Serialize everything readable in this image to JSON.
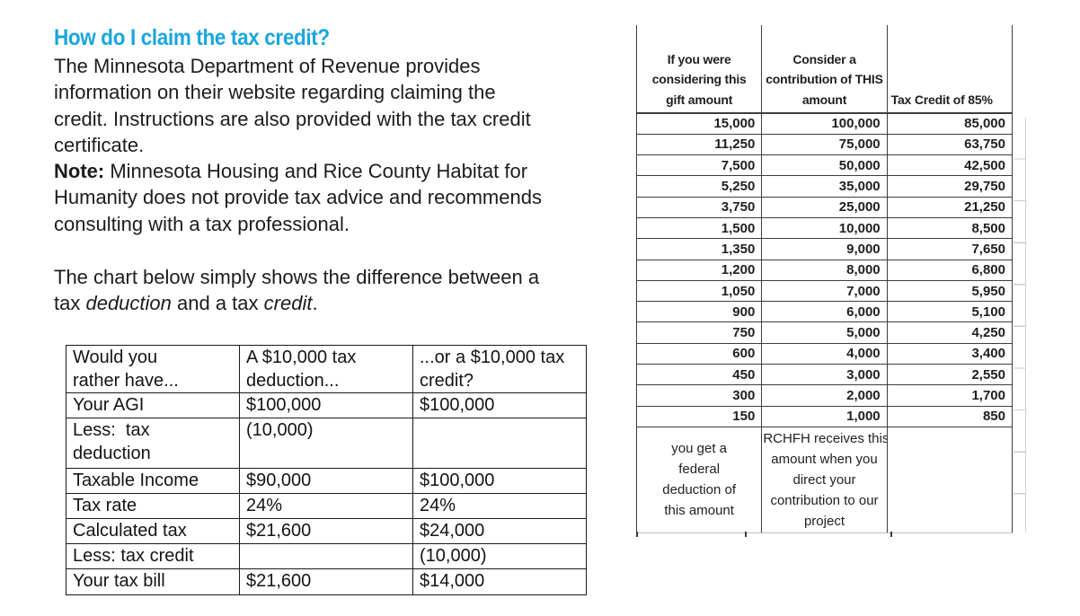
{
  "colors": {
    "accent": "#19a6db",
    "text": "#1c1c1c",
    "table_border_dark": "#3d3d3d",
    "gridline_light": "#cccccc"
  },
  "article": {
    "heading": "How do I claim the tax credit?",
    "para1": "The Minnesota Department of Revenue provides\ninformation on their website regarding claiming the\ncredit. Instructions are also provided with the tax credit\ncertificate.",
    "note_label": "Note:",
    "note_text": " Minnesota Housing and Rice County Habitat for\nHumanity does not provide tax advice and recommends\nconsulting with a tax professional.",
    "para3_part1": "The chart below simply shows the difference between a\ntax ",
    "para3_italic1": "deduction",
    "para3_mid": " and a tax ",
    "para3_italic2": "credit",
    "para3_end": "."
  },
  "comparison_table": {
    "header": [
      "Would you\nrather have...",
      "A $10,000 tax\ndeduction...",
      "...or a $10,000 tax\ncredit?"
    ],
    "rows": [
      [
        "Your AGI",
        "$100,000",
        "$100,000"
      ],
      [
        "Less:  tax\ndeduction",
        "(10,000)",
        ""
      ],
      [
        "Taxable Income",
        "$90,000",
        "$100,000"
      ],
      [
        "Tax rate",
        "24%",
        "24%"
      ],
      [
        "Calculated tax",
        "$21,600",
        "$24,000"
      ],
      [
        "Less: tax credit",
        "",
        "(10,000)"
      ],
      [
        "Your tax bill",
        "$21,600",
        "$14,000"
      ]
    ]
  },
  "gift_table": {
    "header": [
      "If you were\nconsidering this\ngift amount",
      "Consider a\ncontribution of THIS\namount",
      "Tax Credit of 85%"
    ],
    "rows": [
      [
        "15,000",
        "100,000",
        "85,000"
      ],
      [
        "11,250",
        "75,000",
        "63,750"
      ],
      [
        "7,500",
        "50,000",
        "42,500"
      ],
      [
        "5,250",
        "35,000",
        "29,750"
      ],
      [
        "3,750",
        "25,000",
        "21,250"
      ],
      [
        "1,500",
        "10,000",
        "8,500"
      ],
      [
        "1,350",
        "9,000",
        "7,650"
      ],
      [
        "1,200",
        "8,000",
        "6,800"
      ],
      [
        "1,050",
        "7,000",
        "5,950"
      ],
      [
        "900",
        "6,000",
        "5,100"
      ],
      [
        "750",
        "5,000",
        "4,250"
      ],
      [
        "600",
        "4,000",
        "3,400"
      ],
      [
        "450",
        "3,000",
        "2,550"
      ],
      [
        "300",
        "2,000",
        "1,700"
      ],
      [
        "150",
        "1,000",
        "850"
      ]
    ],
    "footer": [
      "you get a\nfederal\ndeduction of\nthis amount",
      "RCHFH receives this\namount when you\ndirect your\ncontribution to our\nproject",
      ""
    ]
  }
}
